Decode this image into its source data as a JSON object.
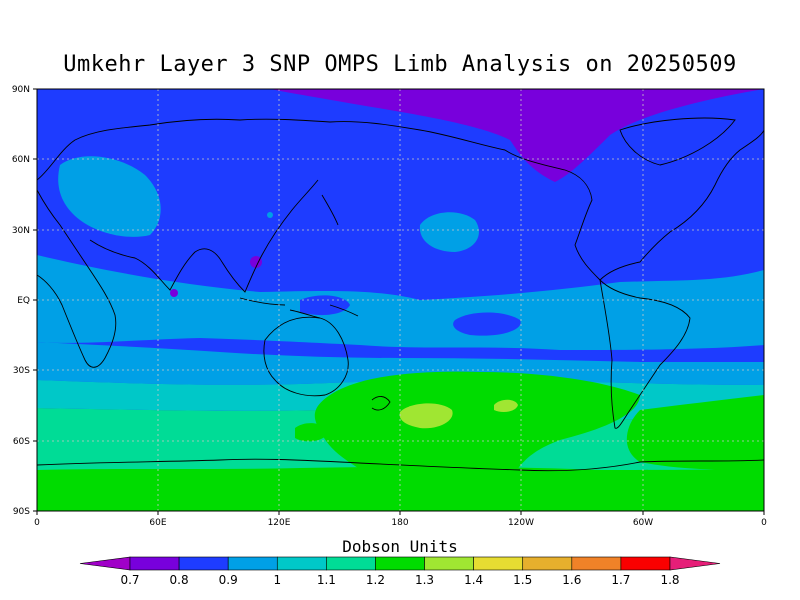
{
  "title": "Umkehr Layer 3 SNP OMPS Limb Analysis on 20250509",
  "map": {
    "lat_ticks": [
      "90N",
      "60N",
      "30N",
      "EQ",
      "30S",
      "60S",
      "90S"
    ],
    "lon_ticks": [
      "0",
      "60E",
      "120E",
      "180",
      "120W",
      "60W",
      "0"
    ],
    "projection": "equirectangular",
    "lon_range": [
      0,
      360
    ],
    "lat_range": [
      -90,
      90
    ]
  },
  "colorbar": {
    "title": "Dobson Units",
    "levels": [
      "0.7",
      "0.8",
      "0.9",
      "1",
      "1.1",
      "1.2",
      "1.3",
      "1.4",
      "1.5",
      "1.6",
      "1.7",
      "1.8"
    ],
    "colors": [
      "#a000c8",
      "#7800dc",
      "#1e3cff",
      "#00a0e6",
      "#00c8c8",
      "#00dc96",
      "#00dc00",
      "#a0e632",
      "#e6dc32",
      "#e6af2d",
      "#f08228",
      "#fa0000",
      "#e61e78"
    ]
  },
  "chart_data": {
    "type": "heatmap",
    "title": "Umkehr Layer 3 SNP OMPS Limb Analysis on 20250509",
    "units": "Dobson Units",
    "x_ticks": [
      "0",
      "60E",
      "120E",
      "180",
      "120W",
      "60W",
      "0"
    ],
    "y_ticks": [
      "90N",
      "60N",
      "30N",
      "EQ",
      "30S",
      "60S",
      "90S"
    ],
    "zonal_bands": [
      {
        "lat": "90N-60N",
        "value": 0.8
      },
      {
        "lat": "60N-20S",
        "value": 0.9
      },
      {
        "lat": "20N-20S",
        "value": 1.0
      },
      {
        "lat": "20S-35S",
        "value": 1.0
      },
      {
        "lat": "35S-45S",
        "value": 1.1
      },
      {
        "lat": "45S-65S",
        "value": 1.2
      },
      {
        "lat": "65S-90S",
        "value": 1.2
      }
    ],
    "contour_levels": [
      0.7,
      0.8,
      0.9,
      1.0,
      1.1,
      1.2,
      1.3,
      1.4,
      1.5,
      1.6,
      1.7,
      1.8
    ]
  }
}
